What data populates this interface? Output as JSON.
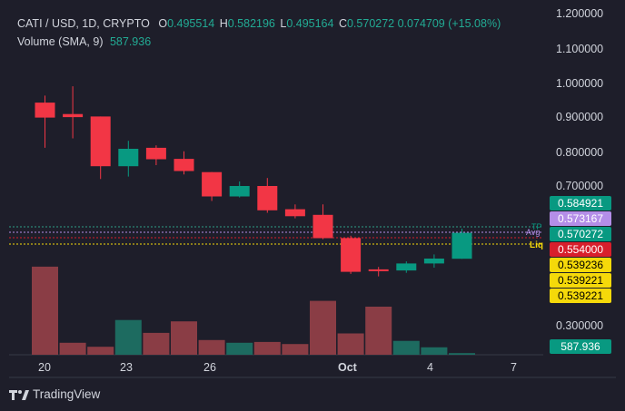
{
  "header": {
    "symbol": "CATI / USD, 1D, CRYPTO",
    "open_label": "O",
    "open": "0.495514",
    "high_label": "H",
    "high": "0.582196",
    "low_label": "L",
    "low": "0.495164",
    "close_label": "C",
    "close": "0.570272",
    "change": "0.074709 (+15.08%)",
    "volume_label": "Volume (SMA, 9)",
    "volume_value": "587.936"
  },
  "price_axis": [
    "1.200000",
    "1.100000",
    "1.000000",
    "0.900000",
    "0.800000",
    "0.700000",
    "0.300000"
  ],
  "time_axis": [
    "20",
    "23",
    "26",
    "Oct",
    "4",
    "7"
  ],
  "line_tags": {
    "tp": "TP",
    "avg": "Avg",
    "liq": "Liq"
  },
  "badges": [
    {
      "text": "0.584921",
      "color": "#089981",
      "text_color": "#ffffff"
    },
    {
      "text": "0.573167",
      "color": "#b48ee8",
      "text_color": "#ffffff"
    },
    {
      "text": "0.570272",
      "color": "#089981",
      "text_color": "#ffffff"
    },
    {
      "text": "0.554000",
      "color": "#d81f2c",
      "text_color": "#ffffff"
    },
    {
      "text": "0.539236",
      "color": "#f5d90a",
      "text_color": "#000000"
    },
    {
      "text": "0.539221",
      "color": "#f5d90a",
      "text_color": "#000000"
    },
    {
      "text": "0.539221",
      "color": "#f5d90a",
      "text_color": "#000000"
    },
    {
      "text": "587.936",
      "color": "#089981",
      "text_color": "#ffffff"
    }
  ],
  "brand": "TradingView",
  "colors": {
    "up": "#089981",
    "down": "#f23645",
    "up_vol": "#1d6b60",
    "down_vol": "#8a3d45",
    "bg": "#1e1e2a"
  },
  "chart_data": {
    "type": "candlestick",
    "x_unit": "day",
    "candles": [
      {
        "day": "Sep 19",
        "o": 0.945,
        "h": 0.965,
        "l": 0.815,
        "c": 0.902
      },
      {
        "day": "Sep 20",
        "o": 0.912,
        "h": 0.992,
        "l": 0.842,
        "c": 0.903
      },
      {
        "day": "Sep 21",
        "o": 0.905,
        "h": 0.905,
        "l": 0.725,
        "c": 0.762
      },
      {
        "day": "Sep 22",
        "o": 0.762,
        "h": 0.835,
        "l": 0.732,
        "c": 0.812
      },
      {
        "day": "Sep 23",
        "o": 0.815,
        "h": 0.822,
        "l": 0.765,
        "c": 0.782
      },
      {
        "day": "Sep 24",
        "o": 0.783,
        "h": 0.805,
        "l": 0.738,
        "c": 0.748
      },
      {
        "day": "Sep 25",
        "o": 0.745,
        "h": 0.745,
        "l": 0.662,
        "c": 0.675
      },
      {
        "day": "Sep 26",
        "o": 0.675,
        "h": 0.718,
        "l": 0.672,
        "c": 0.705
      },
      {
        "day": "Sep 27",
        "o": 0.705,
        "h": 0.728,
        "l": 0.628,
        "c": 0.635
      },
      {
        "day": "Sep 28",
        "o": 0.638,
        "h": 0.652,
        "l": 0.612,
        "c": 0.618
      },
      {
        "day": "Sep 29",
        "o": 0.622,
        "h": 0.652,
        "l": 0.552,
        "c": 0.555
      },
      {
        "day": "Sep 30",
        "o": 0.555,
        "h": 0.562,
        "l": 0.452,
        "c": 0.458
      },
      {
        "day": "Oct 1",
        "o": 0.465,
        "h": 0.472,
        "l": 0.445,
        "c": 0.462
      },
      {
        "day": "Oct 2",
        "o": 0.462,
        "h": 0.488,
        "l": 0.455,
        "c": 0.482
      },
      {
        "day": "Oct 3",
        "o": 0.482,
        "h": 0.508,
        "l": 0.47,
        "c": 0.496
      },
      {
        "day": "Oct 4",
        "o": 0.4955,
        "h": 0.5822,
        "l": 0.4952,
        "c": 0.5703
      }
    ],
    "volume": [
      0.33,
      0.045,
      0.03,
      0.13,
      0.082,
      0.125,
      0.055,
      0.045,
      0.048,
      0.04,
      0.202,
      0.08,
      0.18,
      0.052,
      0.028,
      0.006
    ],
    "volume_axis_max": 0.35
  }
}
